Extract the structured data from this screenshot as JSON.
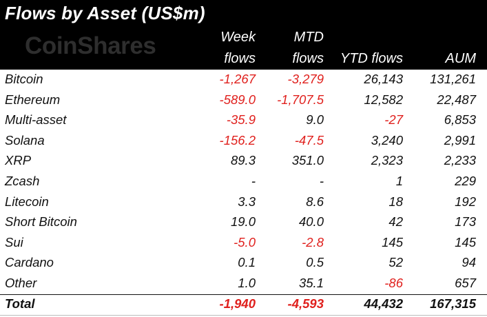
{
  "title": "Flows by Asset (US$m)",
  "logo_text": "CoinShares",
  "headers": {
    "week_line1": "Week",
    "week_line2": "flows",
    "mtd_line1": "MTD",
    "mtd_line2": "flows",
    "ytd": "YTD flows",
    "aum": "AUM"
  },
  "colors": {
    "negative": "#e0201d",
    "header_bg": "#000000",
    "header_text": "#ffffff"
  },
  "rows": [
    {
      "asset": "Bitcoin",
      "week": "-1,267",
      "mtd": "-3,279",
      "ytd": "26,143",
      "aum": "131,261"
    },
    {
      "asset": "Ethereum",
      "week": "-589.0",
      "mtd": "-1,707.5",
      "ytd": "12,582",
      "aum": "22,487"
    },
    {
      "asset": "Multi-asset",
      "week": "-35.9",
      "mtd": "9.0",
      "ytd": "-27",
      "aum": "6,853"
    },
    {
      "asset": "Solana",
      "week": "-156.2",
      "mtd": "-47.5",
      "ytd": "3,240",
      "aum": "2,991"
    },
    {
      "asset": "XRP",
      "week": "89.3",
      "mtd": "351.0",
      "ytd": "2,323",
      "aum": "2,233"
    },
    {
      "asset": "Zcash",
      "week": "-",
      "mtd": "-",
      "ytd": "1",
      "aum": "229"
    },
    {
      "asset": "Litecoin",
      "week": "3.3",
      "mtd": "8.6",
      "ytd": "18",
      "aum": "192"
    },
    {
      "asset": "Short Bitcoin",
      "week": "19.0",
      "mtd": "40.0",
      "ytd": "42",
      "aum": "173"
    },
    {
      "asset": "Sui",
      "week": "-5.0",
      "mtd": "-2.8",
      "ytd": "145",
      "aum": "145"
    },
    {
      "asset": "Cardano",
      "week": "0.1",
      "mtd": "0.5",
      "ytd": "52",
      "aum": "94"
    },
    {
      "asset": "Other",
      "week": "1.0",
      "mtd": "35.1",
      "ytd": "-86",
      "aum": "657"
    }
  ],
  "total": {
    "asset": "Total",
    "week": "-1,940",
    "mtd": "-4,593",
    "ytd": "44,432",
    "aum": "167,315"
  }
}
